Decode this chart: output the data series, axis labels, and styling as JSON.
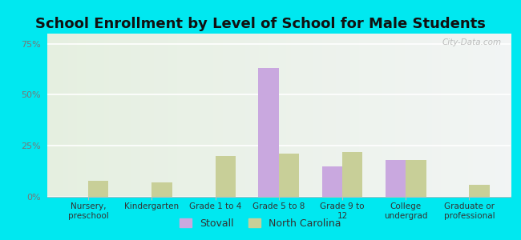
{
  "title": "School Enrollment by Level of School for Male Students",
  "categories": [
    "Nursery,\npreschool",
    "Kindergarten",
    "Grade 1 to 4",
    "Grade 5 to 8",
    "Grade 9 to\n12",
    "College\nundergrad",
    "Graduate or\nprofessional"
  ],
  "stovall": [
    0,
    0,
    0,
    63,
    15,
    18,
    0
  ],
  "north_carolina": [
    8,
    7,
    20,
    21,
    22,
    18,
    6
  ],
  "stovall_color": "#c9a8df",
  "nc_color": "#c8cf98",
  "bar_width": 0.32,
  "ylim": [
    0,
    80
  ],
  "yticks": [
    0,
    25,
    50,
    75
  ],
  "ytick_labels": [
    "0%",
    "25%",
    "50%",
    "75%"
  ],
  "background_color": "#00e8f0",
  "title_fontsize": 13,
  "title_color": "#111111",
  "legend_labels": [
    "Stovall",
    "North Carolina"
  ],
  "watermark": "City-Data.com",
  "tick_color": "#777777",
  "label_color": "#333333"
}
